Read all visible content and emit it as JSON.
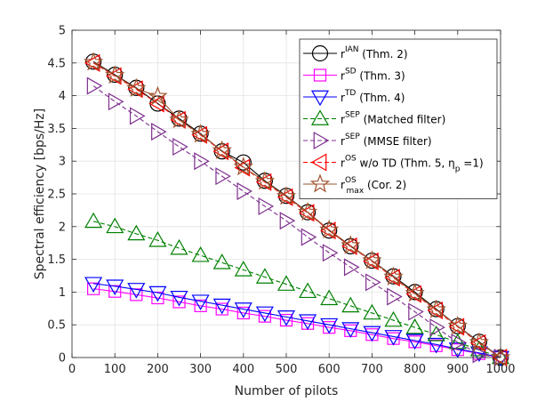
{
  "chart_data": {
    "type": "line",
    "title": "",
    "xlabel": "Number of pilots",
    "ylabel": "Spectral efficiency [bps/Hz]",
    "xlim": [
      0,
      1000
    ],
    "ylim": [
      0,
      5
    ],
    "xticks": [
      0,
      100,
      200,
      300,
      400,
      500,
      600,
      700,
      800,
      900,
      1000
    ],
    "yticks": [
      0,
      0.5,
      1,
      1.5,
      2,
      2.5,
      3,
      3.5,
      4,
      4.5,
      5
    ],
    "xticklabels": [
      "0",
      "100",
      "200",
      "300",
      "400",
      "500",
      "600",
      "700",
      "800",
      "900",
      "1000"
    ],
    "yticklabels": [
      "0",
      "0.5",
      "1",
      "1.5",
      "2",
      "2.5",
      "3",
      "3.5",
      "4",
      "4.5",
      "5"
    ],
    "grid": true,
    "legend_position": "top-right",
    "x": [
      50,
      100,
      150,
      200,
      250,
      300,
      350,
      400,
      450,
      500,
      550,
      600,
      650,
      700,
      750,
      800,
      850,
      900,
      950,
      1000
    ],
    "series": [
      {
        "name": "IAN",
        "label_base": "r",
        "label_sup": "IAN",
        "label_sub": "",
        "label_rest": " (Thm. 2)",
        "color": "#000000",
        "marker": "circle",
        "dashed": false,
        "values": [
          4.52,
          4.32,
          4.12,
          3.88,
          3.65,
          3.42,
          3.15,
          2.98,
          2.7,
          2.47,
          2.22,
          1.94,
          1.7,
          1.48,
          1.24,
          1.0,
          0.74,
          0.48,
          0.24,
          0.0
        ]
      },
      {
        "name": "SD",
        "label_base": "r",
        "label_sup": "SD",
        "label_sub": "",
        "label_rest": " (Thm. 3)",
        "color": "#ff00ff",
        "marker": "square",
        "dashed": false,
        "values": [
          1.05,
          1.01,
          0.96,
          0.91,
          0.85,
          0.79,
          0.74,
          0.68,
          0.63,
          0.57,
          0.52,
          0.46,
          0.41,
          0.35,
          0.29,
          0.24,
          0.18,
          0.12,
          0.06,
          0.0
        ]
      },
      {
        "name": "TD",
        "label_base": "r",
        "label_sup": "TD",
        "label_sub": "",
        "label_rest": " (Thm. 4)",
        "color": "#0000ff",
        "marker": "triangle-down",
        "dashed": false,
        "values": [
          1.13,
          1.09,
          1.04,
          0.99,
          0.92,
          0.86,
          0.8,
          0.74,
          0.68,
          0.62,
          0.56,
          0.5,
          0.44,
          0.38,
          0.32,
          0.26,
          0.2,
          0.13,
          0.07,
          0.0
        ]
      },
      {
        "name": "SEP Matched filter",
        "label_base": "r",
        "label_sup": "SEP",
        "label_sub": "",
        "label_rest": " (Matched filter)",
        "color": "#008000",
        "marker": "triangle-up",
        "dashed": true,
        "values": [
          2.08,
          2.0,
          1.89,
          1.79,
          1.67,
          1.56,
          1.45,
          1.34,
          1.23,
          1.12,
          1.01,
          0.9,
          0.79,
          0.68,
          0.57,
          0.46,
          0.35,
          0.23,
          0.12,
          0.0
        ]
      },
      {
        "name": "SEP MMSE filter",
        "label_base": "r",
        "label_sup": "SEP",
        "label_sub": "",
        "label_rest": " (MMSE filter)",
        "color": "#7e2f8e",
        "marker": "triangle-right",
        "dashed": true,
        "values": [
          4.15,
          3.91,
          3.69,
          3.45,
          3.22,
          3.0,
          2.77,
          2.54,
          2.31,
          2.09,
          1.84,
          1.6,
          1.38,
          1.15,
          0.93,
          0.7,
          0.46,
          0.23,
          0.05,
          0.0
        ]
      },
      {
        "name": "OS w/o TD",
        "label_base": "r",
        "label_sup": "OS",
        "label_sub": "",
        "label_rest": " w/o TD (Thm. 5, η",
        "label_rest_sub": "p",
        "label_rest_end": " =1)",
        "color": "#ff0000",
        "marker": "triangle-left",
        "dashed": true,
        "values": [
          4.5,
          4.3,
          4.1,
          3.88,
          3.63,
          3.4,
          3.15,
          2.9,
          2.68,
          2.45,
          2.21,
          1.94,
          1.7,
          1.47,
          1.22,
          0.97,
          0.72,
          0.47,
          0.22,
          0.0
        ]
      },
      {
        "name": "OS max",
        "label_base": "r",
        "label_sup": "OS",
        "label_sub": "max",
        "label_rest": " (Cor. 2)",
        "color": "#a0522d",
        "marker": "star",
        "dashed": false,
        "values": [
          4.51,
          4.31,
          4.11,
          3.99,
          3.63,
          3.41,
          3.16,
          2.91,
          2.69,
          2.46,
          2.22,
          1.95,
          1.71,
          1.48,
          1.23,
          0.98,
          0.73,
          0.48,
          0.23,
          0.0
        ]
      }
    ]
  }
}
